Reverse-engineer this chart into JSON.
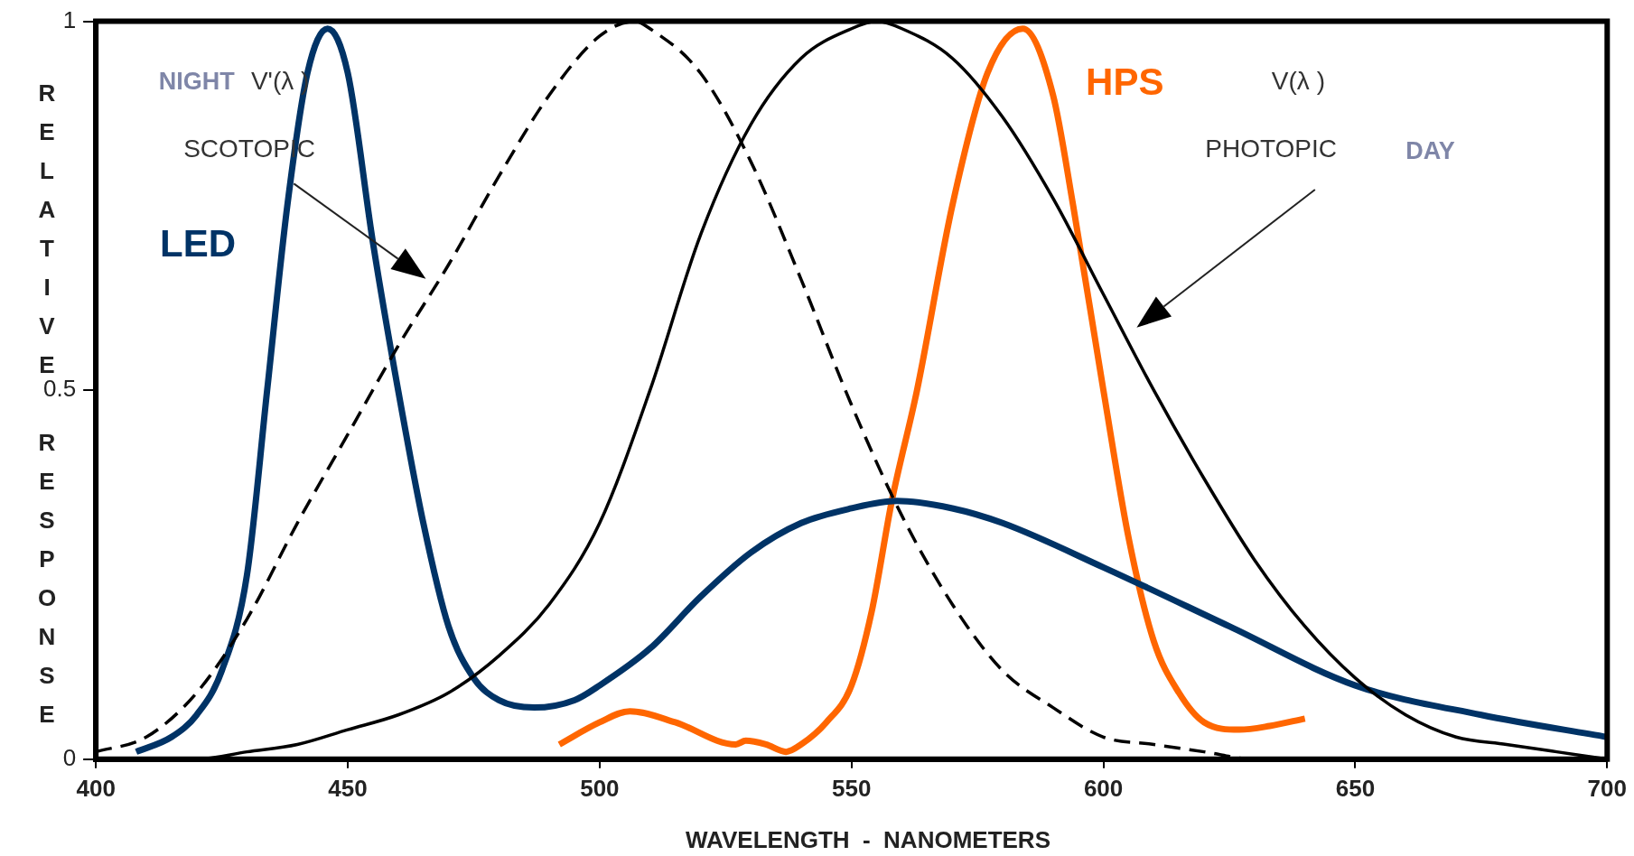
{
  "chart_data": {
    "type": "line",
    "xlabel": "WAVELENGTH  -  NANOMETERS",
    "ylabel": "RELATIVE  RESPONSE",
    "xlim": [
      400,
      700
    ],
    "xticks": [
      400,
      450,
      500,
      550,
      600,
      650,
      700
    ],
    "ylim": [
      0,
      1
    ],
    "yticks": [
      0,
      0.5,
      1
    ],
    "grid": false,
    "legend": false,
    "marker": "none",
    "annotations": [
      "NIGHT",
      "V'(λ )",
      "SCOTOPIC",
      "V(λ )",
      "PHOTOPIC",
      "DAY"
    ],
    "series": [
      {
        "color": "#000000",
        "line_style": "dashed",
        "x": [
          400,
          410,
          420,
          430,
          440,
          450,
          460,
          470,
          480,
          490,
          500,
          507,
          510,
          520,
          530,
          540,
          550,
          560,
          570,
          580,
          590,
          600,
          610,
          620,
          630,
          640,
          650,
          700
        ],
        "values": [
          0.01,
          0.03,
          0.09,
          0.19,
          0.32,
          0.44,
          0.56,
          0.67,
          0.79,
          0.9,
          0.98,
          1.0,
          0.99,
          0.93,
          0.81,
          0.65,
          0.48,
          0.33,
          0.21,
          0.12,
          0.07,
          0.03,
          0.02,
          0.01,
          0.0,
          0.0,
          0.0,
          0.0
        ]
      },
      {
        "color": "#000000",
        "line_style": "solid",
        "x": [
          400,
          410,
          420,
          430,
          440,
          450,
          460,
          470,
          480,
          490,
          500,
          510,
          520,
          530,
          540,
          550,
          555,
          560,
          570,
          580,
          590,
          600,
          610,
          620,
          630,
          640,
          650,
          660,
          670,
          680,
          690,
          700
        ],
        "values": [
          0.0,
          0.0,
          0.0,
          0.01,
          0.02,
          0.04,
          0.06,
          0.09,
          0.14,
          0.21,
          0.32,
          0.5,
          0.71,
          0.86,
          0.95,
          0.99,
          1.0,
          0.99,
          0.95,
          0.87,
          0.76,
          0.63,
          0.5,
          0.38,
          0.27,
          0.18,
          0.11,
          0.06,
          0.03,
          0.02,
          0.01,
          0.0
        ]
      },
      {
        "name": "LED",
        "color": "#003366",
        "line_style": "solid",
        "x": [
          408,
          415,
          420,
          425,
          430,
          434,
          438,
          442,
          446,
          450,
          455,
          460,
          465,
          470,
          475,
          480,
          487,
          495,
          500,
          510,
          520,
          530,
          540,
          550,
          559,
          570,
          580,
          600,
          625,
          650,
          675,
          700
        ],
        "values": [
          0.01,
          0.03,
          0.06,
          0.12,
          0.25,
          0.5,
          0.75,
          0.93,
          0.99,
          0.93,
          0.7,
          0.5,
          0.32,
          0.18,
          0.11,
          0.08,
          0.07,
          0.08,
          0.1,
          0.15,
          0.22,
          0.28,
          0.32,
          0.34,
          0.35,
          0.34,
          0.32,
          0.26,
          0.18,
          0.1,
          0.06,
          0.03
        ]
      },
      {
        "name": "HPS",
        "color": "#ff6600",
        "line_style": "solid",
        "x": [
          492,
          500,
          506,
          515,
          527,
          529,
          533,
          537,
          540,
          545,
          550,
          554,
          558,
          563,
          570,
          577,
          584,
          590,
          594,
          600,
          605,
          610,
          615,
          620,
          627,
          633,
          640
        ],
        "values": [
          0.02,
          0.05,
          0.065,
          0.05,
          0.02,
          0.025,
          0.02,
          0.01,
          0.02,
          0.05,
          0.1,
          0.2,
          0.35,
          0.5,
          0.75,
          0.93,
          0.99,
          0.9,
          0.75,
          0.5,
          0.3,
          0.16,
          0.09,
          0.05,
          0.04,
          0.045,
          0.055
        ]
      }
    ]
  }
}
